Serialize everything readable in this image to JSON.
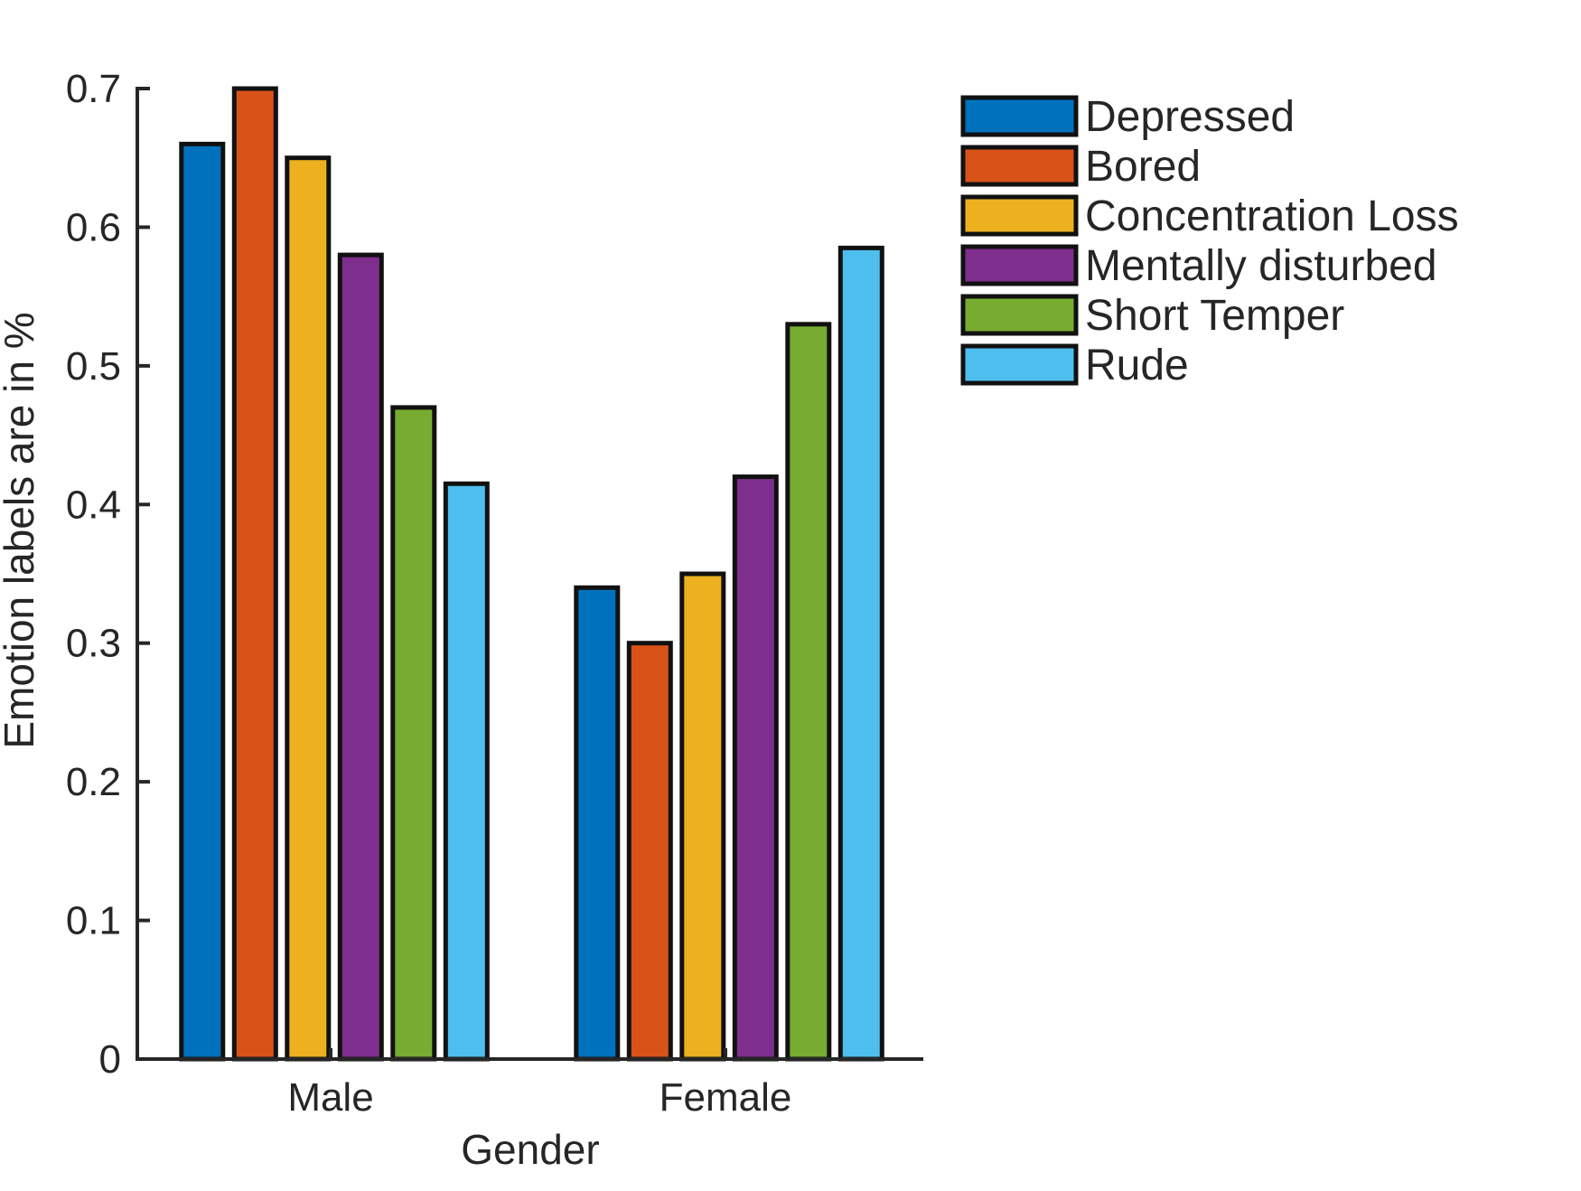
{
  "chart_data": {
    "type": "bar",
    "categories": [
      "Male",
      "Female"
    ],
    "series": [
      {
        "name": "Depressed",
        "color": "#0072BD",
        "values": [
          0.66,
          0.34
        ]
      },
      {
        "name": "Bored",
        "color": "#D95319",
        "values": [
          0.7,
          0.3
        ]
      },
      {
        "name": "Concentration Loss",
        "color": "#EDB120",
        "values": [
          0.65,
          0.35
        ]
      },
      {
        "name": "Mentally disturbed",
        "color": "#7E2F8E",
        "values": [
          0.58,
          0.42
        ]
      },
      {
        "name": "Short Temper",
        "color": "#77AC30",
        "values": [
          0.47,
          0.53
        ]
      },
      {
        "name": "Rude",
        "color": "#4DBEEE",
        "values": [
          0.415,
          0.585
        ]
      }
    ],
    "title": "",
    "xlabel": "Gender",
    "ylabel": "Emotion labels are in %",
    "ylim": [
      0,
      0.7
    ],
    "yticks": [
      0,
      0.1,
      0.2,
      0.3,
      0.4,
      0.5,
      0.6,
      0.7
    ],
    "ytick_labels": [
      "0",
      "0.1",
      "0.2",
      "0.3",
      "0.4",
      "0.5",
      "0.6",
      "0.7"
    ],
    "grid": false,
    "legend_position": "outside-top-right"
  }
}
